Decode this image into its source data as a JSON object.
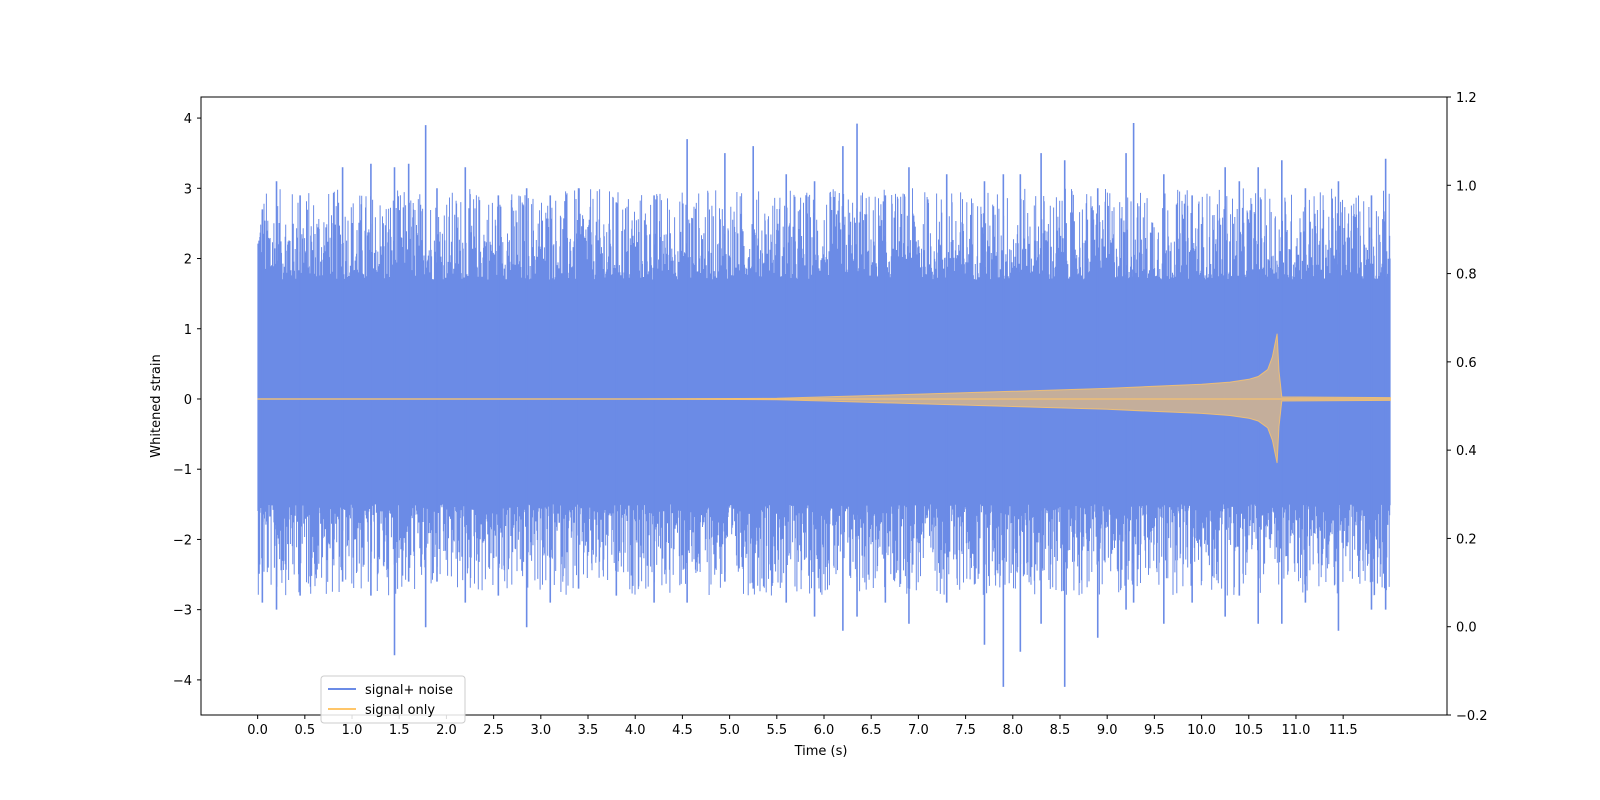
{
  "chart_data": {
    "type": "line",
    "title": "",
    "xlabel": "Time (s)",
    "ylabel": "Whitened strain",
    "xlim": [
      -0.6,
      12.6
    ],
    "ylim": [
      -4.5,
      4.3
    ],
    "y2lim": [
      -0.2,
      1.2
    ],
    "x_ticks": [
      0.0,
      0.5,
      1.0,
      1.5,
      2.0,
      2.5,
      3.0,
      3.5,
      4.0,
      4.5,
      5.0,
      5.5,
      6.0,
      6.5,
      7.0,
      7.5,
      8.0,
      8.5,
      9.0,
      9.5,
      10.0,
      10.5,
      11.0,
      11.5
    ],
    "x_tick_labels": [
      "0.0",
      "0.5",
      "1.0",
      "1.5",
      "2.0",
      "2.5",
      "3.0",
      "3.5",
      "4.0",
      "4.5",
      "5.0",
      "5.5",
      "6.0",
      "6.5",
      "7.0",
      "7.5",
      "8.0",
      "8.5",
      "9.0",
      "9.5",
      "10.0",
      "10.5",
      "11.0",
      "11.5"
    ],
    "y_ticks": [
      -4,
      -3,
      -2,
      -1,
      0,
      1,
      2,
      3,
      4
    ],
    "y_tick_labels": [
      "−4",
      "−3",
      "−2",
      "−1",
      "0",
      "1",
      "2",
      "3",
      "4"
    ],
    "y2_ticks": [
      -0.2,
      0.0,
      0.2,
      0.4,
      0.6,
      0.8,
      1.0,
      1.2
    ],
    "y2_tick_labels": [
      "−0.2",
      "0.0",
      "0.2",
      "0.4",
      "0.6",
      "0.8",
      "1.0",
      "1.2"
    ],
    "grid": false,
    "legend_position": "lower-left",
    "series": [
      {
        "name": "signal+ noise",
        "color": "#6b8be6",
        "kind": "noise_envelope",
        "x_range": [
          0.0,
          12.0
        ],
        "typical_range": [
          -1.5,
          1.7
        ],
        "extremes": {
          "x": [
            0.05,
            0.2,
            0.45,
            0.9,
            1.2,
            1.45,
            1.6,
            1.78,
            1.9,
            2.2,
            2.55,
            2.85,
            3.1,
            3.4,
            3.8,
            4.2,
            4.55,
            4.95,
            5.25,
            5.6,
            5.9,
            6.2,
            6.35,
            6.65,
            6.9,
            7.3,
            7.7,
            7.9,
            8.08,
            8.3,
            8.55,
            8.9,
            9.2,
            9.28,
            9.6,
            9.9,
            10.25,
            10.4,
            10.6,
            10.85,
            11.1,
            11.45,
            11.8,
            11.95
          ],
          "max": [
            2.7,
            3.1,
            2.9,
            3.3,
            3.35,
            3.3,
            3.35,
            3.9,
            3.0,
            3.3,
            2.9,
            3.0,
            2.9,
            3.0,
            2.8,
            2.9,
            3.7,
            3.5,
            3.6,
            3.2,
            3.1,
            3.6,
            3.92,
            2.9,
            3.3,
            3.2,
            3.1,
            3.2,
            3.2,
            3.5,
            3.4,
            3.0,
            3.5,
            3.93,
            3.2,
            2.9,
            3.3,
            3.1,
            3.3,
            3.4,
            3.0,
            3.1,
            2.9,
            3.42
          ],
          "min": [
            -2.9,
            -3.0,
            -2.8,
            -2.6,
            -2.8,
            -3.65,
            -2.6,
            -3.25,
            -2.6,
            -2.9,
            -2.8,
            -3.25,
            -2.9,
            -2.7,
            -2.8,
            -2.9,
            -2.9,
            -2.6,
            -2.7,
            -2.9,
            -3.1,
            -3.3,
            -3.1,
            -2.9,
            -3.2,
            -2.9,
            -3.5,
            -4.1,
            -3.6,
            -3.2,
            -4.1,
            -3.4,
            -3.0,
            -2.9,
            -3.2,
            -2.9,
            -3.1,
            -2.8,
            -3.2,
            -3.2,
            -2.9,
            -3.3,
            -3.0,
            -3.0
          ]
        }
      },
      {
        "name": "signal only",
        "color": "#ffc669",
        "kind": "chirp",
        "x": [
          0.0,
          2.0,
          4.0,
          5.5,
          6.0,
          7.0,
          8.0,
          9.0,
          9.5,
          10.0,
          10.3,
          10.5,
          10.6,
          10.7,
          10.75,
          10.78,
          10.8,
          10.82,
          10.85,
          12.0
        ],
        "amplitude": [
          0.0,
          0.0,
          0.0,
          0.01,
          0.03,
          0.07,
          0.11,
          0.15,
          0.18,
          0.21,
          0.24,
          0.28,
          0.32,
          0.42,
          0.6,
          0.8,
          0.93,
          0.4,
          0.03,
          0.02
        ]
      }
    ]
  }
}
